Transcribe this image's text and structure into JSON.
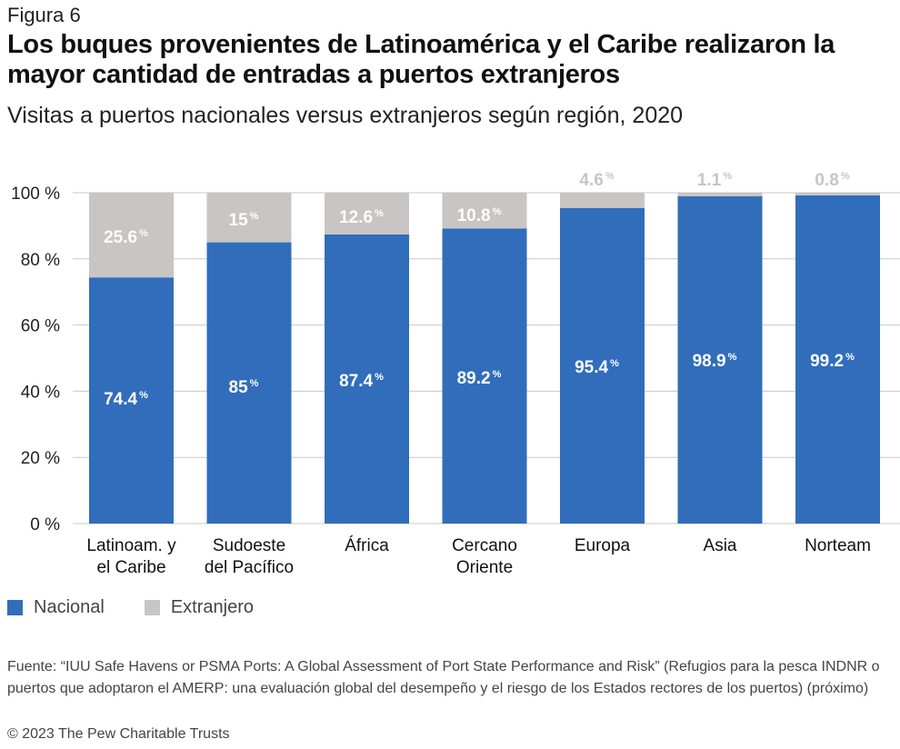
{
  "header": {
    "figure_label": "Figura 6",
    "title": "Los buques provenientes de Latinoamérica y el Caribe realizaron la mayor cantidad de entradas a puertos extranjeros",
    "subtitle": "Visitas a puertos nacionales versus extranjeros según región, 2020"
  },
  "colors": {
    "nacional": "#316dba",
    "extranjero": "#c8c5c4",
    "gridline": "#c8c8c8",
    "label_on_bar": "#ffffff",
    "label_above_bar": "#c8c5c4"
  },
  "chart_data": {
    "type": "bar",
    "stacked": true,
    "title": "Visitas a puertos nacionales versus extranjeros según región, 2020",
    "xlabel": "",
    "ylabel": "",
    "ylim": [
      0,
      100
    ],
    "yticks": [
      0,
      20,
      40,
      60,
      80,
      100
    ],
    "ytick_labels": [
      "0 %",
      "20 %",
      "40 %",
      "60 %",
      "80 %",
      "100 %"
    ],
    "grid": true,
    "legend_position": "bottom-left",
    "categories": [
      [
        "Latinoam. y",
        "el Caribe"
      ],
      [
        "Sudoeste",
        "del Pacífico"
      ],
      [
        "África"
      ],
      [
        "Cercano",
        "Oriente"
      ],
      [
        "Europa"
      ],
      [
        "Asia"
      ],
      [
        "Norteam"
      ]
    ],
    "series": [
      {
        "name": "Nacional",
        "values": [
          74.4,
          85,
          87.4,
          89.2,
          95.4,
          98.9,
          99.2
        ],
        "labels": [
          "74.4",
          "85",
          "87.4",
          "89.2",
          "95.4",
          "98.9",
          "99.2"
        ]
      },
      {
        "name": "Extranjero",
        "values": [
          25.6,
          15,
          12.6,
          10.8,
          4.6,
          1.1,
          0.8
        ],
        "labels": [
          "25.6",
          "15",
          "12.6",
          "10.8",
          "4.6",
          "1.1",
          "0.8"
        ]
      }
    ],
    "unit_suffix": "%"
  },
  "legend": {
    "items": [
      {
        "label": "Nacional"
      },
      {
        "label": "Extranjero"
      }
    ]
  },
  "footer": {
    "source": "Fuente: “IUU Safe Havens or PSMA Ports: A Global Assessment of Port State Performance and Risk” (Refugios para la pesca INDNR o puertos que adoptaron el AMERP: una evaluación global del desempeño y el riesgo de los Estados rectores de los puertos) (próximo)",
    "copyright": "© 2023 The Pew Charitable Trusts"
  }
}
